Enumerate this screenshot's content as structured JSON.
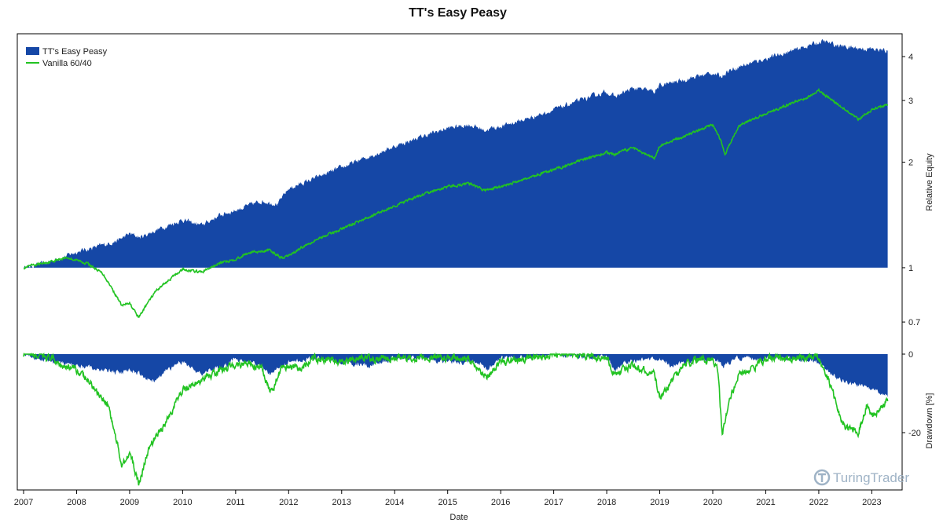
{
  "chart_data": {
    "title": "TT's Easy Peasy",
    "xlabel": "Date",
    "colors": {
      "strategy": "#1547a6",
      "benchmark": "#22c322",
      "axis": "#000000"
    },
    "legend": {
      "placement": "top-left",
      "entries": [
        "TT's Easy Peasy",
        "Vanilla 60/40"
      ]
    },
    "watermark": "TuringTrader",
    "x_ticks": [
      "2007",
      "2008",
      "2009",
      "2010",
      "2011",
      "2012",
      "2013",
      "2014",
      "2015",
      "2016",
      "2017",
      "2018",
      "2019",
      "2020",
      "2021",
      "2022",
      "2023"
    ],
    "x_range": [
      2007.0,
      2023.35
    ],
    "panels": [
      {
        "type": "area+line",
        "ylabel": "Relative Equity",
        "scale": "log",
        "ylim": [
          0.6,
          4.6
        ],
        "yticks": [
          {
            "value": 0.7,
            "label": "0.7"
          },
          {
            "value": 1,
            "label": "1"
          },
          {
            "value": 2,
            "label": "2"
          },
          {
            "value": 3,
            "label": "3"
          },
          {
            "value": 4,
            "label": "4"
          }
        ],
        "series": [
          {
            "name": "TT's Easy Peasy",
            "type": "area",
            "baseline": 1,
            "x": [
              2007.0,
              2007.4,
              2007.8,
              2008.0,
              2008.5,
              2008.8,
              2009.0,
              2009.2,
              2009.5,
              2010.0,
              2010.35,
              2010.7,
              2011.0,
              2011.5,
              2011.8,
              2012.0,
              2012.5,
              2013.0,
              2013.5,
              2014.0,
              2014.5,
              2015.0,
              2015.4,
              2015.7,
              2016.0,
              2016.5,
              2017.0,
              2017.5,
              2018.0,
              2018.15,
              2018.5,
              2018.9,
              2019.0,
              2019.5,
              2020.0,
              2020.15,
              2020.25,
              2020.5,
              2021.0,
              2021.5,
              2021.9,
              2022.1,
              2022.3,
              2022.6,
              2023.0,
              2023.3
            ],
            "values": [
              1.0,
              1.03,
              1.08,
              1.11,
              1.16,
              1.2,
              1.25,
              1.22,
              1.28,
              1.37,
              1.32,
              1.41,
              1.46,
              1.55,
              1.52,
              1.68,
              1.8,
              1.93,
              2.07,
              2.22,
              2.36,
              2.5,
              2.56,
              2.47,
              2.53,
              2.66,
              2.82,
              3.0,
              3.18,
              3.07,
              3.25,
              3.18,
              3.3,
              3.45,
              3.6,
              3.5,
              3.62,
              3.75,
              3.95,
              4.15,
              4.35,
              4.42,
              4.32,
              4.25,
              4.2,
              4.15
            ]
          },
          {
            "name": "Vanilla 60/40",
            "type": "line",
            "x": [
              2007.0,
              2007.5,
              2007.8,
              2008.2,
              2008.5,
              2008.75,
              2008.85,
              2009.0,
              2009.17,
              2009.5,
              2010.0,
              2010.35,
              2010.7,
              2011.0,
              2011.3,
              2011.65,
              2011.9,
              2012.5,
              2013.0,
              2013.5,
              2014.0,
              2014.5,
              2015.0,
              2015.4,
              2015.7,
              2016.0,
              2016.5,
              2017.0,
              2017.5,
              2018.0,
              2018.15,
              2018.5,
              2018.9,
              2019.0,
              2019.5,
              2020.0,
              2020.15,
              2020.23,
              2020.5,
              2021.0,
              2021.5,
              2021.9,
              2022.0,
              2022.45,
              2022.75,
              2023.0,
              2023.3
            ],
            "values": [
              1.0,
              1.04,
              1.07,
              1.03,
              0.96,
              0.83,
              0.78,
              0.79,
              0.72,
              0.86,
              0.99,
              0.97,
              1.03,
              1.06,
              1.11,
              1.12,
              1.06,
              1.2,
              1.29,
              1.39,
              1.5,
              1.61,
              1.7,
              1.74,
              1.66,
              1.7,
              1.8,
              1.9,
              2.02,
              2.13,
              2.1,
              2.2,
              2.05,
              2.22,
              2.38,
              2.56,
              2.3,
              2.1,
              2.55,
              2.75,
              2.95,
              3.12,
              3.2,
              2.85,
              2.65,
              2.82,
              2.92
            ]
          }
        ]
      },
      {
        "type": "drawdown",
        "ylabel": "Drawdown [%]",
        "ylim": [
          -34,
          0
        ],
        "yticks": [
          {
            "value": 0,
            "label": "0"
          },
          {
            "value": -20,
            "label": "-20"
          }
        ],
        "series": [
          {
            "name": "TT's Easy Peasy",
            "type": "area",
            "x": [
              2007.0,
              2007.5,
              2008.0,
              2008.5,
              2008.85,
              2009.0,
              2009.5,
              2009.7,
              2010.0,
              2010.35,
              2010.5,
              2010.8,
              2011.0,
              2011.5,
              2011.65,
              2012.0,
              2012.5,
              2013.0,
              2013.5,
              2014.0,
              2014.5,
              2015.0,
              2015.6,
              2015.75,
              2016.0,
              2016.5,
              2017.0,
              2018.0,
              2018.15,
              2018.4,
              2019.0,
              2019.2,
              2019.5,
              2020.0,
              2020.2,
              2020.4,
              2021.0,
              2021.5,
              2022.0,
              2022.2,
              2022.5,
              2022.8,
              2023.0,
              2023.3
            ],
            "values": [
              0,
              -2,
              -3,
              -4,
              -5,
              -4,
              -7,
              -4,
              -2,
              -5,
              -4,
              -3,
              -1,
              -3,
              -5,
              -2,
              -1,
              -2,
              -3,
              -1,
              -1,
              -2,
              -2,
              -4,
              -1,
              -1,
              0,
              -1,
              -4,
              -2,
              -1,
              -3,
              -2,
              -1,
              -3,
              -1,
              -1,
              -1,
              -2,
              -5,
              -7,
              -8,
              -9,
              -11
            ]
          },
          {
            "name": "Vanilla 60/40",
            "type": "line",
            "x": [
              2007.0,
              2007.5,
              2007.8,
              2008.0,
              2008.3,
              2008.6,
              2008.75,
              2008.85,
              2009.0,
              2009.17,
              2009.4,
              2009.7,
              2010.0,
              2010.35,
              2010.6,
              2010.9,
              2011.2,
              2011.5,
              2011.65,
              2011.9,
              2012.2,
              2012.5,
              2013.0,
              2013.5,
              2014.0,
              2014.5,
              2015.0,
              2015.4,
              2015.65,
              2015.75,
              2016.0,
              2016.5,
              2017.0,
              2017.5,
              2018.0,
              2018.15,
              2018.5,
              2018.9,
              2019.0,
              2019.5,
              2020.0,
              2020.1,
              2020.18,
              2020.3,
              2020.5,
              2020.8,
              2021.0,
              2021.5,
              2022.0,
              2022.2,
              2022.45,
              2022.75,
              2022.9,
              2023.0,
              2023.3
            ],
            "values": [
              0,
              -1,
              -3,
              -4,
              -8,
              -13,
              -22,
              -28,
              -25,
              -33,
              -23,
              -17,
              -9,
              -7,
              -5,
              -3,
              -2,
              -4,
              -10,
              -3,
              -4,
              -1,
              -2,
              -1,
              -1,
              -1,
              -1,
              -1,
              -5,
              -6,
              -2,
              -1,
              0,
              0,
              -1,
              -5,
              -3,
              -5,
              -11,
              -2,
              -1,
              -4,
              -21,
              -12,
              -5,
              -3,
              -1,
              -1,
              -1,
              -7,
              -18,
              -20,
              -13,
              -16,
              -12
            ]
          }
        ]
      }
    ]
  }
}
